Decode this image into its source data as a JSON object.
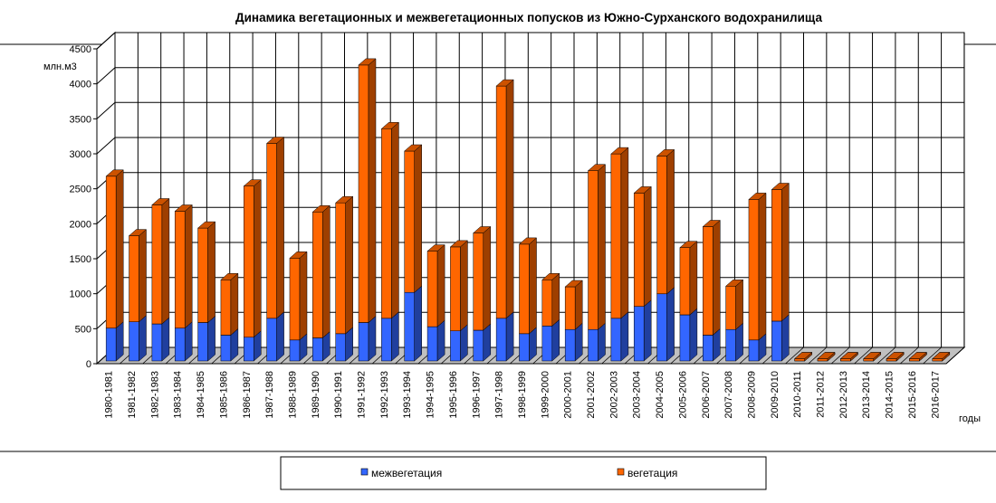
{
  "chart_data": {
    "type": "bar",
    "stacked": true,
    "title": "Динамика вегетационных и межвегетационных попусков из Южно-Сурханского  водохранилища",
    "ylabel": "млн.м3",
    "xlabel": "годы",
    "ylim": [
      0,
      4500
    ],
    "yticks": [
      0,
      500,
      1000,
      1500,
      2000,
      2500,
      3000,
      3500,
      4000,
      4500
    ],
    "grid": true,
    "legend_position": "bottom",
    "categories": [
      "1980-1981",
      "1981-1982",
      "1982-1983",
      "1983-1984",
      "1984-1985",
      "1985-1986",
      "1986-1987",
      "1987-1988",
      "1988-1989",
      "1989-1990",
      "1990-1991",
      "1991-1992",
      "1992-1993",
      "1993-1994",
      "1994-1995",
      "1995-1996",
      "1996-1997",
      "1997-1998",
      "1998-1999",
      "1999-2000",
      "2000-2001",
      "2001-2002",
      "2002-2003",
      "2003-2004",
      "2004-2005",
      "2005-2006",
      "2006-2007",
      "2007-2008",
      "2008-2009",
      "2009-2010",
      "2010-2011",
      "2011-2012",
      "2012-2013",
      "2013-2014",
      "2014-2015",
      "2015-2016",
      "2016-2017"
    ],
    "series": [
      {
        "name": "межвегетация",
        "color": "#3366ff",
        "values": [
          470,
          560,
          530,
          470,
          550,
          370,
          340,
          610,
          300,
          330,
          390,
          550,
          610,
          980,
          490,
          430,
          440,
          610,
          390,
          500,
          450,
          450,
          610,
          780,
          960,
          660,
          370,
          450,
          300,
          570,
          0,
          0,
          0,
          0,
          0,
          0,
          0
        ]
      },
      {
        "name": "вегетация",
        "color": "#ff6600",
        "values": [
          2170,
          1230,
          1700,
          1670,
          1350,
          790,
          2160,
          2500,
          1170,
          1800,
          1870,
          3680,
          2710,
          2020,
          1080,
          1200,
          1390,
          3320,
          1280,
          660,
          610,
          2270,
          2350,
          1620,
          1970,
          960,
          1550,
          620,
          2010,
          1880,
          0,
          0,
          0,
          0,
          0,
          0,
          0
        ]
      }
    ]
  }
}
